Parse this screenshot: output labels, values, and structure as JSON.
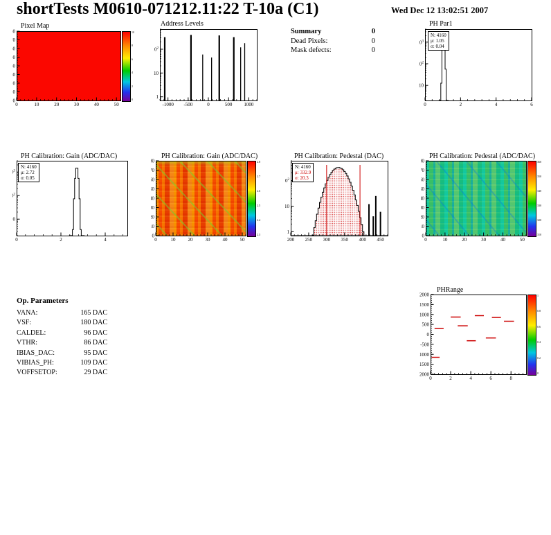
{
  "header": {
    "title": "shortTests M0610-071212.11:22 T-10a (C1)",
    "date": "Wed Dec 12 13:02:51 2007"
  },
  "summary": {
    "title": "Summary",
    "total": "0",
    "rows": [
      {
        "label": "Dead Pixels:",
        "value": "0"
      },
      {
        "label": "Mask defects:",
        "value": "0"
      }
    ]
  },
  "op_parameters": {
    "title": "Op. Parameters",
    "rows": [
      {
        "label": "VANA:",
        "value": "165 DAC"
      },
      {
        "label": "VSF:",
        "value": "180 DAC"
      },
      {
        "label": "CALDEL:",
        "value": "96 DAC"
      },
      {
        "label": "VTHR:",
        "value": "86 DAC"
      },
      {
        "label": "IBIAS_DAC:",
        "value": "95 DAC"
      },
      {
        "label": "VIBIAS_PH:",
        "value": "109 DAC"
      },
      {
        "label": "VOFFSETOP:",
        "value": "29 DAC"
      }
    ]
  },
  "colors": {
    "accent_red": "#cc0000",
    "frame": "#000000",
    "map_red": "#fb0700"
  },
  "chart_data": [
    {
      "id": "pixel_map",
      "type": "heatmap",
      "title": "Pixel Map",
      "xlim": [
        0,
        52
      ],
      "ylim": [
        0,
        80
      ],
      "x_ticks": [
        0,
        10,
        20,
        30,
        40,
        50
      ],
      "y_ticks": [
        0,
        10,
        20,
        30,
        40,
        50,
        60,
        70,
        80
      ],
      "uniform_fill": true,
      "value_color": "#fb0700",
      "colorbar_labels": [
        "10",
        "8",
        "6",
        "4",
        "2",
        "0"
      ]
    },
    {
      "id": "address_levels",
      "type": "histogram",
      "title": "Address Levels",
      "log_y": true,
      "xlim": [
        -1200,
        1200
      ],
      "x_ticks": [
        -1000,
        -500,
        0,
        500,
        1000
      ],
      "ymin": 0.7,
      "ymax": 700,
      "y_ticks": [
        {
          "v": 100,
          "b": "10",
          "e": "2"
        },
        {
          "v": 10,
          "b": "10"
        },
        {
          "v": 1,
          "b": "1"
        }
      ],
      "spikes": [
        [
          -1080,
          320
        ],
        [
          -430,
          400
        ],
        [
          -140,
          60
        ],
        [
          80,
          45
        ],
        [
          270,
          380
        ],
        [
          630,
          320
        ],
        [
          800,
          120
        ],
        [
          900,
          180
        ]
      ]
    },
    {
      "id": "ph_par1",
      "type": "histogram",
      "title": "PH Par1",
      "log_y": true,
      "xlim": [
        0,
        6
      ],
      "x_ticks": [
        0,
        2,
        4,
        6
      ],
      "ymin": 2,
      "ymax": 4000,
      "y_ticks": [
        {
          "v": 1000,
          "b": "10",
          "e": "3"
        },
        {
          "v": 100,
          "b": "10",
          "e": "2"
        },
        {
          "v": 10,
          "b": "10"
        }
      ],
      "gauss": {
        "N": 4160,
        "mean": 1.05,
        "sigma": 0.04,
        "bin": 0.06
      },
      "stats": [
        {
          "text": "N: 4160"
        },
        {
          "text": "μ: 1.05"
        },
        {
          "text": "σ: 0.04"
        }
      ]
    },
    {
      "id": "gain_hist",
      "type": "histogram",
      "title": "PH Calibration: Gain (ADC/DAC)",
      "log_y": true,
      "xlim": [
        0,
        5
      ],
      "x_ticks": [
        0,
        2,
        4
      ],
      "ymin": 2,
      "ymax": 3000,
      "y_ticks": [
        {
          "v": 1000,
          "b": "10",
          "e": "3"
        },
        {
          "v": 100,
          "b": "10",
          "e": "2"
        },
        {
          "v": 10,
          "b": "10"
        }
      ],
      "gauss": {
        "N": 4160,
        "mean": 2.72,
        "sigma": 0.05,
        "bin": 0.05
      },
      "stats": [
        {
          "text": "N: 4160"
        },
        {
          "text": "μ: 2.72"
        },
        {
          "text": "σ: 0.05"
        }
      ]
    },
    {
      "id": "gain_map",
      "type": "heatmap",
      "title": "PH Calibration: Gain (ADC/DAC)",
      "xlim": [
        0,
        52
      ],
      "ylim": [
        0,
        80
      ],
      "x_ticks": [
        0,
        10,
        20,
        30,
        40,
        50
      ],
      "y_ticks": [
        0,
        10,
        20,
        30,
        40,
        50,
        60,
        70,
        80
      ],
      "colorbar_labels": [
        "2.8",
        "2.7",
        "2.6",
        "2.5",
        "2.4",
        "2.3"
      ]
    },
    {
      "id": "ped_hist",
      "type": "histogram",
      "title": "PH Calibration: Pedestal (DAC)",
      "log_y": true,
      "xlim": [
        200,
        470
      ],
      "x_ticks": [
        200,
        250,
        300,
        350,
        400,
        450
      ],
      "ymin": 0.7,
      "ymax": 600,
      "y_ticks": [
        {
          "v": 100,
          "b": "10",
          "e": "2"
        },
        {
          "v": 10,
          "b": "10"
        },
        {
          "v": 1,
          "b": "1"
        }
      ],
      "gauss": {
        "N": 4160,
        "mean": 332.9,
        "sigma": 20.3,
        "bin": 4
      },
      "hatch": true,
      "vlines": [
        300,
        393
      ],
      "outliers": [
        [
          418,
          12
        ],
        [
          430,
          4
        ],
        [
          437,
          25
        ],
        [
          450,
          6
        ]
      ],
      "stats": [
        {
          "text": "N: 4160"
        },
        {
          "text": "μ: 332.9",
          "color": "#cc0000"
        },
        {
          "text": "σ: 20.3",
          "color": "#cc0000"
        }
      ]
    },
    {
      "id": "ped_map",
      "type": "heatmap",
      "title": "PH Calibration: Pedestal (ADC/DAC)",
      "xlim": [
        0,
        52
      ],
      "ylim": [
        0,
        80
      ],
      "x_ticks": [
        0,
        10,
        20,
        30,
        40,
        50
      ],
      "y_ticks": [
        0,
        10,
        20,
        30,
        40,
        50,
        60,
        70,
        80
      ],
      "colorbar_labels": [
        "360",
        "350",
        "340",
        "330",
        "320",
        "310"
      ]
    },
    {
      "id": "ph_range",
      "type": "segments",
      "title": "PHRange",
      "xlim": [
        0,
        9.5
      ],
      "x_ticks": [
        0,
        2,
        4,
        6,
        8
      ],
      "ylim": [
        -2000,
        2000
      ],
      "y_ticks": [
        {
          "v": 2000,
          "t": "2000"
        },
        {
          "v": 1500,
          "t": "1500"
        },
        {
          "v": 1000,
          "t": "1000"
        },
        {
          "v": 500,
          "t": "500"
        },
        {
          "v": 0,
          "t": "0"
        },
        {
          "v": -500,
          "t": "-500"
        },
        {
          "v": -1000,
          "t": "1000"
        },
        {
          "v": -1500,
          "t": "1500"
        },
        {
          "v": -2000,
          "t": "2000"
        }
      ],
      "segment_color": "#cc0000",
      "segments": [
        {
          "x1": 0.1,
          "x2": 0.9,
          "y": -1150
        },
        {
          "x1": 0.4,
          "x2": 1.3,
          "y": 300
        },
        {
          "x1": 2.0,
          "x2": 3.0,
          "y": 870
        },
        {
          "x1": 2.7,
          "x2": 3.7,
          "y": 430
        },
        {
          "x1": 3.6,
          "x2": 4.5,
          "y": -320
        },
        {
          "x1": 4.4,
          "x2": 5.3,
          "y": 940
        },
        {
          "x1": 5.5,
          "x2": 6.5,
          "y": -180
        },
        {
          "x1": 6.1,
          "x2": 7.0,
          "y": 850
        },
        {
          "x1": 7.3,
          "x2": 8.3,
          "y": 660
        }
      ],
      "colorbar_labels": [
        "1",
        "0.8",
        "0.6",
        "0.4",
        "0.2",
        "0"
      ]
    }
  ]
}
